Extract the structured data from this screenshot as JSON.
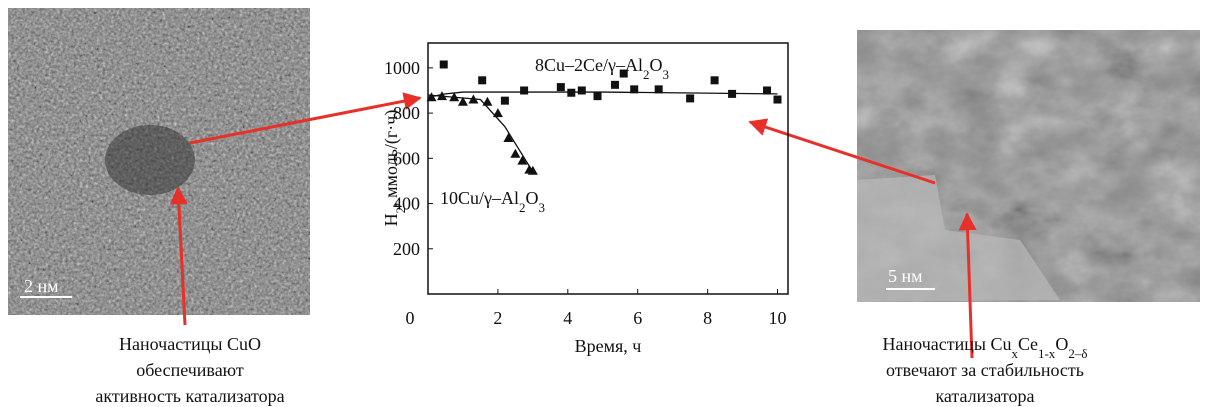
{
  "chart_data": {
    "type": "scatter",
    "xlabel": "Время, ч",
    "ylabel": [
      "H",
      "2",
      ", ммоль/(г·ч)"
    ],
    "xlim": [
      0,
      10.3
    ],
    "ylim": [
      0,
      1110
    ],
    "xticks": [
      0,
      2,
      4,
      6,
      8,
      10
    ],
    "yticks": [
      200,
      400,
      600,
      800,
      1000
    ],
    "series": [
      {
        "label": [
          "8Cu–2Ce/γ–Al",
          "2",
          "O",
          "3"
        ],
        "marker": "square",
        "color": "#111111",
        "x": [
          0.45,
          1.55,
          2.2,
          2.75,
          3.8,
          4.1,
          4.4,
          4.85,
          5.35,
          5.6,
          5.9,
          6.6,
          7.5,
          8.2,
          8.7,
          9.7,
          10.0
        ],
        "values": [
          1015,
          945,
          855,
          900,
          915,
          890,
          900,
          875,
          925,
          975,
          905,
          905,
          865,
          945,
          885,
          900,
          860
        ],
        "fit_x": [
          0,
          0.5,
          1,
          5,
          10
        ],
        "fit_values": [
          870,
          885,
          893,
          893,
          885
        ]
      },
      {
        "label": [
          "10Cu/γ–Al",
          "2",
          "O",
          "3"
        ],
        "marker": "triangle",
        "color": "#111111",
        "x": [
          0.1,
          0.4,
          0.75,
          1.0,
          1.3,
          1.7,
          2.0,
          2.3,
          2.5,
          2.7,
          2.9,
          3.0
        ],
        "values": [
          870,
          875,
          870,
          850,
          860,
          850,
          800,
          690,
          620,
          590,
          550,
          545
        ],
        "fit_x": [
          0,
          1.5,
          2.2,
          3.0
        ],
        "fit_values": [
          880,
          860,
          740,
          540
        ]
      }
    ]
  },
  "scale_bars": {
    "left": "2 нм",
    "right": "5 нм"
  },
  "captions": {
    "left": [
      [
        "Наночастицы CuO"
      ],
      [
        "обеспечивают"
      ],
      [
        "активность катализатора"
      ]
    ],
    "right": [
      [
        "Наночастицы Cu",
        "x",
        "Ce",
        "1-x",
        "O",
        "2–δ"
      ],
      [
        "отвечают за стабильность"
      ],
      [
        "катализатора"
      ]
    ]
  }
}
